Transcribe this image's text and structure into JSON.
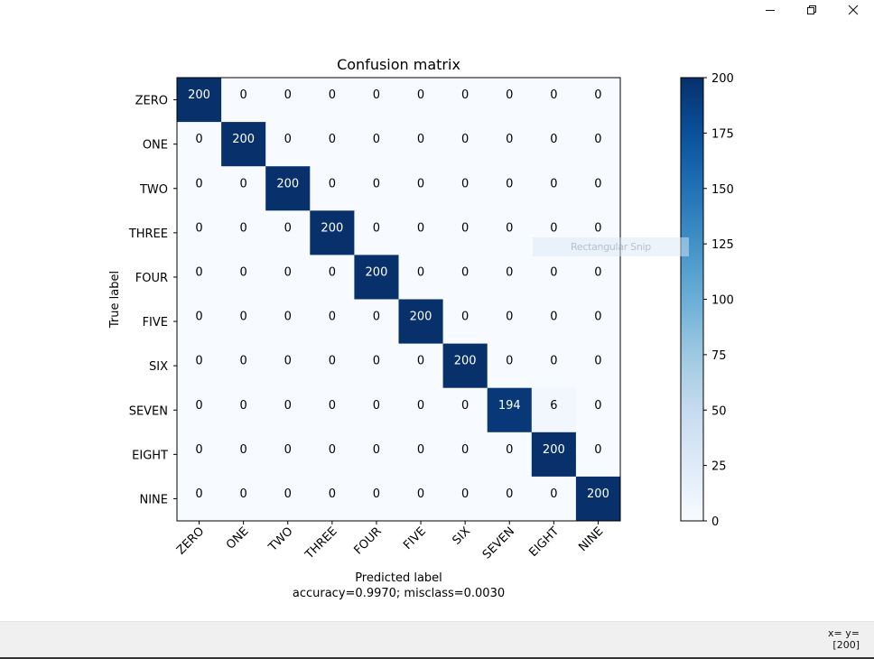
{
  "window": {
    "minimize_icon": "minimize-icon",
    "maximize_icon": "restore-icon",
    "close_icon": "close-icon"
  },
  "chart_data": {
    "type": "heatmap",
    "title": "Confusion matrix",
    "xlabel": "Predicted label",
    "xlabel_sub": "accuracy=0.9970; misclass=0.0030",
    "ylabel": "True label",
    "x_categories": [
      "ZERO",
      "ONE",
      "TWO",
      "THREE",
      "FOUR",
      "FIVE",
      "SIX",
      "SEVEN",
      "EIGHT",
      "NINE"
    ],
    "y_categories": [
      "ZERO",
      "ONE",
      "TWO",
      "THREE",
      "FOUR",
      "FIVE",
      "SIX",
      "SEVEN",
      "EIGHT",
      "NINE"
    ],
    "values": [
      [
        200,
        0,
        0,
        0,
        0,
        0,
        0,
        0,
        0,
        0
      ],
      [
        0,
        200,
        0,
        0,
        0,
        0,
        0,
        0,
        0,
        0
      ],
      [
        0,
        0,
        200,
        0,
        0,
        0,
        0,
        0,
        0,
        0
      ],
      [
        0,
        0,
        0,
        200,
        0,
        0,
        0,
        0,
        0,
        0
      ],
      [
        0,
        0,
        0,
        0,
        200,
        0,
        0,
        0,
        0,
        0
      ],
      [
        0,
        0,
        0,
        0,
        0,
        200,
        0,
        0,
        0,
        0
      ],
      [
        0,
        0,
        0,
        0,
        0,
        0,
        200,
        0,
        0,
        0
      ],
      [
        0,
        0,
        0,
        0,
        0,
        0,
        0,
        194,
        6,
        0
      ],
      [
        0,
        0,
        0,
        0,
        0,
        0,
        0,
        0,
        200,
        0
      ],
      [
        0,
        0,
        0,
        0,
        0,
        0,
        0,
        0,
        0,
        200
      ]
    ],
    "colormap": "Blues",
    "colorbar": {
      "range": [
        0,
        200
      ],
      "ticks": [
        0,
        25,
        50,
        75,
        100,
        125,
        150,
        175,
        200
      ]
    },
    "colors": {
      "low": "#f7fbff",
      "high": "#08306b"
    }
  },
  "overlay": {
    "snip_label": "Rectangular Snip"
  },
  "status": {
    "coord_line1": "x= y=",
    "coord_line2": "[200]"
  }
}
